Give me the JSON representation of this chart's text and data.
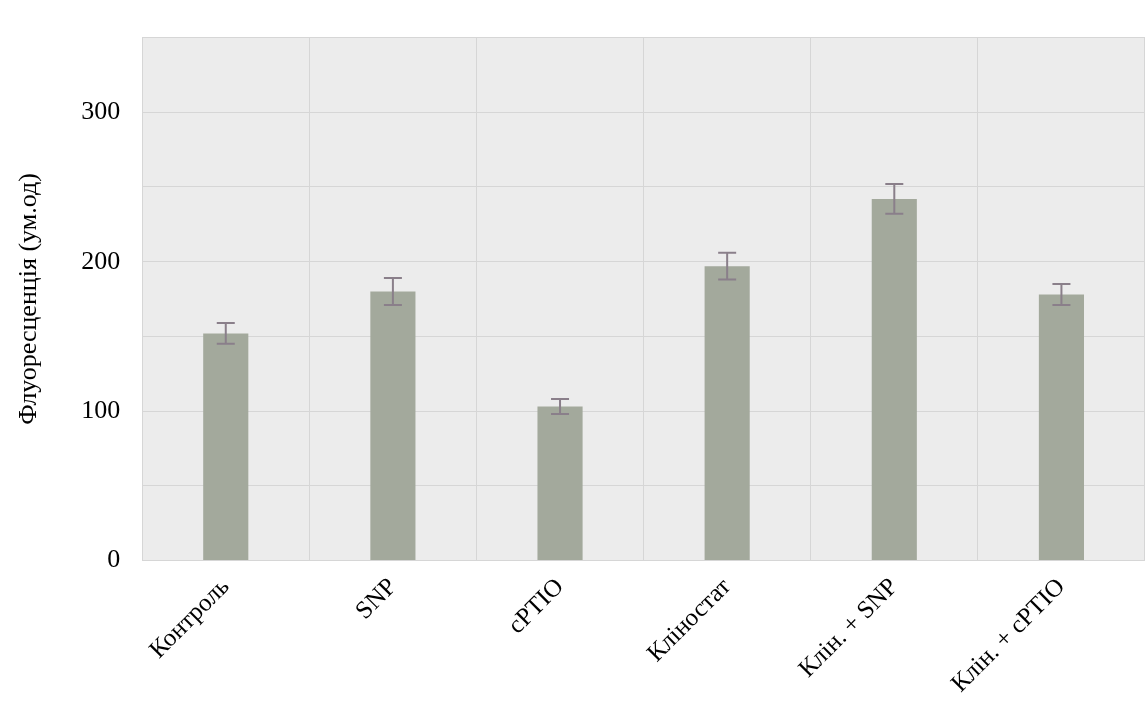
{
  "chart_data": {
    "type": "bar",
    "ylabel": "Флуоресценція (ум.од)",
    "categories": [
      "Контроль",
      "SNP",
      "cPTIO",
      "Кліностат",
      "Клін. + SNP",
      "Клін. + cPTIO"
    ],
    "values": [
      152,
      180,
      103,
      197,
      242,
      178
    ],
    "errors": [
      7,
      9,
      5,
      9,
      10,
      7
    ],
    "color": "#a3a99c",
    "ylim": [
      0,
      350
    ],
    "yticks": [
      0,
      {
        "value": 50,
        "label": null
      },
      100,
      {
        "value": 150,
        "label": null
      },
      200,
      {
        "value": 250,
        "label": null
      },
      300,
      {
        "value": 350,
        "label": null
      }
    ],
    "grid": true
  }
}
